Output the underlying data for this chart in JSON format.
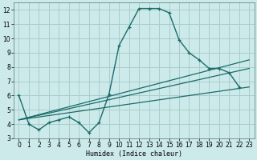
{
  "xlabel": "Humidex (Indice chaleur)",
  "background_color": "#cdeaea",
  "grid_color": "#aacccc",
  "line_color": "#1a6b6b",
  "xlim": [
    -0.5,
    23.5
  ],
  "ylim": [
    3,
    12.5
  ],
  "xticks": [
    0,
    1,
    2,
    3,
    4,
    5,
    6,
    7,
    8,
    9,
    10,
    11,
    12,
    13,
    14,
    15,
    16,
    17,
    18,
    19,
    20,
    21,
    22,
    23
  ],
  "yticks": [
    3,
    4,
    5,
    6,
    7,
    8,
    9,
    10,
    11,
    12
  ],
  "line_main_x": [
    0,
    1,
    2,
    3,
    4,
    5,
    6,
    7,
    8,
    9,
    10,
    11,
    12,
    13,
    14,
    15,
    16,
    17,
    18,
    19,
    20,
    21,
    22
  ],
  "line_main_y": [
    6.0,
    4.0,
    3.6,
    4.1,
    4.3,
    4.5,
    4.1,
    3.4,
    4.1,
    6.1,
    9.5,
    10.8,
    12.1,
    12.1,
    12.1,
    11.8,
    9.9,
    9.0,
    8.5,
    7.9,
    7.9,
    7.6,
    6.6
  ],
  "line2_x": [
    0,
    23
  ],
  "line2_y": [
    4.3,
    8.5
  ],
  "line3_x": [
    0,
    23
  ],
  "line3_y": [
    4.3,
    7.9
  ],
  "line4_x": [
    0,
    23
  ],
  "line4_y": [
    4.3,
    6.6
  ],
  "xlabel_fontsize": 6,
  "tick_fontsize": 5.5
}
